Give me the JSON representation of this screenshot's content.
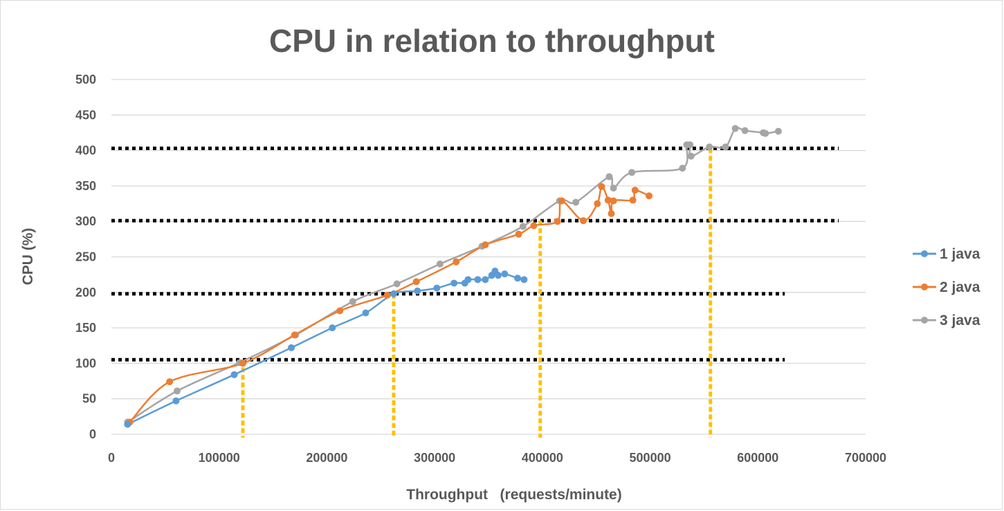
{
  "chart_data": {
    "type": "line",
    "title": "CPU in relation to throughput",
    "xlabel": "Throughput   (requests/minute)",
    "ylabel": "CPU (%)",
    "xlim": [
      0,
      700000
    ],
    "ylim": [
      0,
      500
    ],
    "x_ticks": [
      0,
      100000,
      200000,
      300000,
      400000,
      500000,
      600000,
      700000
    ],
    "y_ticks": [
      0,
      50,
      100,
      150,
      200,
      250,
      300,
      350,
      400,
      450,
      500
    ],
    "grid": "horizontal",
    "legend_position": "right",
    "series": [
      {
        "name": "1 java",
        "color": "#5b9bd5",
        "x": [
          15000,
          60000,
          114000,
          167000,
          205000,
          236000,
          262000,
          284000,
          302000,
          318000,
          328000,
          331000,
          340000,
          347000,
          353000,
          356000,
          359000,
          365000,
          377000,
          383000
        ],
        "y": [
          14,
          47,
          84,
          122,
          150,
          171,
          198,
          202,
          206,
          213,
          213,
          218,
          218,
          218,
          224,
          230,
          224,
          226,
          220,
          218
        ]
      },
      {
        "name": "2 java",
        "color": "#ed7d31",
        "x": [
          17000,
          54000,
          122000,
          170000,
          212000,
          256000,
          283000,
          320000,
          347000,
          378000,
          392000,
          414000,
          418000,
          438000,
          451000,
          455000,
          461000,
          464000,
          466000,
          484000,
          486000,
          499000
        ],
        "y": [
          17,
          74,
          100,
          140,
          174,
          196,
          215,
          243,
          267,
          282,
          294,
          300,
          329,
          301,
          325,
          349,
          330,
          311,
          329,
          330,
          344,
          336
        ]
      },
      {
        "name": "3 java",
        "color": "#a5a5a5",
        "x": [
          15000,
          61000,
          119000,
          171000,
          224000,
          265000,
          305000,
          344000,
          382000,
          416000,
          431000,
          462000,
          466000,
          483000,
          530000,
          534000,
          537000,
          538000,
          555000,
          570000,
          579000,
          588000,
          605000,
          607000,
          619000
        ],
        "y": [
          17,
          61,
          101,
          140,
          187,
          212,
          240,
          265,
          293,
          329,
          327,
          363,
          347,
          369,
          375,
          408,
          408,
          392,
          405,
          405,
          431,
          428,
          425,
          424,
          427
        ]
      }
    ],
    "annotations": {
      "horizontal_dotted_lines": [
        {
          "y": 105,
          "x_end": 625000,
          "color": "#000000"
        },
        {
          "y": 198,
          "x_end": 625000,
          "color": "#000000"
        },
        {
          "y": 301,
          "x_end": 675000,
          "color": "#000000"
        },
        {
          "y": 403,
          "x_end": 675000,
          "color": "#000000"
        }
      ],
      "vertical_dotted_lines": [
        {
          "x": 122000,
          "y_top": 105,
          "color": "#ffc000"
        },
        {
          "x": 262000,
          "y_top": 198,
          "color": "#ffc000"
        },
        {
          "x": 398000,
          "y_top": 301,
          "color": "#ffc000"
        },
        {
          "x": 556000,
          "y_top": 403,
          "color": "#ffc000"
        }
      ]
    }
  }
}
